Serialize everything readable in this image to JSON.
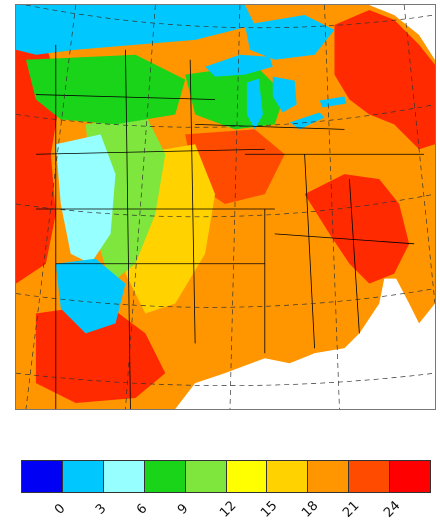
{
  "legend": {
    "bins": [
      {
        "color": "#0000f5"
      },
      {
        "color": "#00c8ff"
      },
      {
        "color": "#96ffff"
      },
      {
        "color": "#19d419"
      },
      {
        "color": "#7ee63c"
      },
      {
        "color": "#ffff00"
      },
      {
        "color": "#ffd200"
      },
      {
        "color": "#ff9600"
      },
      {
        "color": "#ff4b00"
      },
      {
        "color": "#ff0000"
      }
    ],
    "tick_labels": [
      "0",
      "3",
      "6",
      "9",
      "12",
      "15",
      "18",
      "21",
      "24"
    ]
  },
  "map": {
    "ocean_color": "#ffffff",
    "lakes_color": "#00c8ff"
  }
}
